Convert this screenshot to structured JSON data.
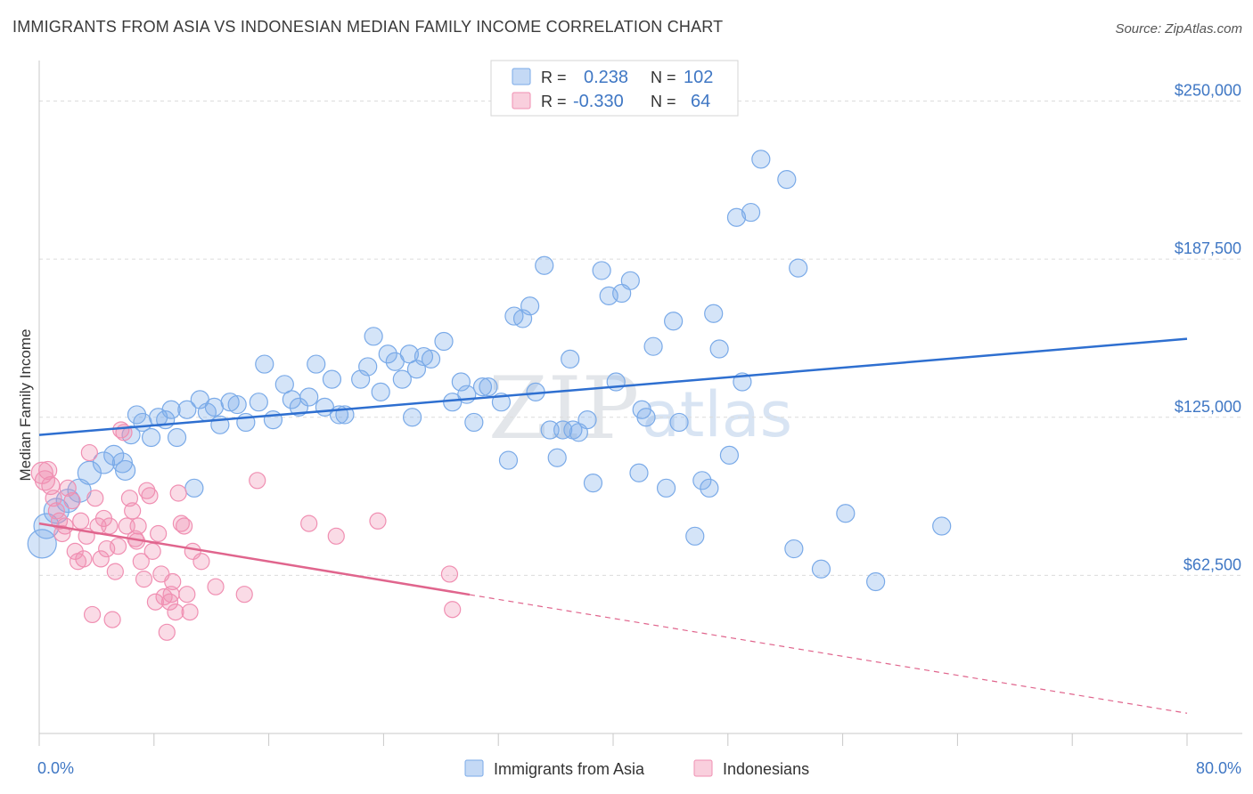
{
  "header": {
    "title": "IMMIGRANTS FROM ASIA VS INDONESIAN MEDIAN FAMILY INCOME CORRELATION CHART",
    "source": "Source: ZipAtlas.com"
  },
  "watermark": {
    "zip": "ZIP",
    "atlas": "atlas"
  },
  "chart_data": {
    "type": "scatter",
    "ylabel": "Median Family Income",
    "xlim": [
      0,
      80
    ],
    "ylim": [
      0,
      262500
    ],
    "x_tick_labels": [
      "0.0%",
      "80.0%"
    ],
    "y_ticks": [
      62500,
      125000,
      187500,
      250000
    ],
    "y_tick_labels": [
      "$62,500",
      "$125,000",
      "$187,500",
      "$250,000"
    ],
    "grid": true,
    "legend_placement": "top-center",
    "legend": {
      "rows": [
        {
          "r_label": "R =",
          "r_value": "0.238",
          "n_label": "N =",
          "n_value": "102"
        },
        {
          "r_label": "R =",
          "r_value": "-0.330",
          "n_label": "N =",
          "n_value": "64"
        }
      ]
    },
    "series": [
      {
        "name": "Immigrants from Asia",
        "color": "#7aaae8",
        "line_color": "#2e6fd0",
        "trend": {
          "x0": 0,
          "y0": 118000,
          "x1": 80,
          "y1": 156000,
          "dash_from": null
        },
        "points": [
          [
            0.2,
            75000,
            16
          ],
          [
            0.5,
            82000,
            14
          ],
          [
            1.2,
            88000,
            14
          ],
          [
            2.0,
            92000,
            13
          ],
          [
            2.8,
            96000,
            13
          ],
          [
            3.5,
            103000,
            13
          ],
          [
            4.5,
            107000,
            12
          ],
          [
            5.2,
            110000,
            11
          ],
          [
            5.8,
            107000,
            11
          ],
          [
            6.0,
            104000,
            11
          ],
          [
            6.4,
            118000,
            10
          ],
          [
            6.8,
            126000,
            10
          ],
          [
            7.2,
            123000,
            10
          ],
          [
            7.8,
            117000,
            10
          ],
          [
            8.3,
            125000,
            10
          ],
          [
            8.8,
            124000,
            10
          ],
          [
            9.2,
            128000,
            10
          ],
          [
            9.6,
            117000,
            10
          ],
          [
            10.3,
            128000,
            10
          ],
          [
            10.8,
            97000,
            10
          ],
          [
            11.2,
            132000,
            10
          ],
          [
            11.7,
            127000,
            10
          ],
          [
            12.2,
            129000,
            10
          ],
          [
            12.6,
            122000,
            10
          ],
          [
            13.3,
            131000,
            10
          ],
          [
            13.8,
            130000,
            10
          ],
          [
            14.4,
            123000,
            10
          ],
          [
            15.3,
            131000,
            10
          ],
          [
            15.7,
            146000,
            10
          ],
          [
            16.3,
            124000,
            10
          ],
          [
            17.1,
            138000,
            10
          ],
          [
            17.6,
            132000,
            10
          ],
          [
            18.1,
            129000,
            10
          ],
          [
            18.8,
            133000,
            10
          ],
          [
            19.3,
            146000,
            10
          ],
          [
            19.9,
            129000,
            10
          ],
          [
            20.4,
            140000,
            10
          ],
          [
            20.9,
            126000,
            10
          ],
          [
            21.3,
            126000,
            10
          ],
          [
            22.4,
            140000,
            10
          ],
          [
            22.9,
            145000,
            10
          ],
          [
            23.3,
            157000,
            10
          ],
          [
            23.8,
            135000,
            10
          ],
          [
            24.3,
            150000,
            10
          ],
          [
            24.8,
            147000,
            10
          ],
          [
            25.3,
            140000,
            10
          ],
          [
            25.8,
            150000,
            10
          ],
          [
            26.3,
            144000,
            10
          ],
          [
            26.8,
            149000,
            10
          ],
          [
            27.3,
            148000,
            10
          ],
          [
            28.2,
            155000,
            10
          ],
          [
            28.8,
            131000,
            10
          ],
          [
            29.4,
            139000,
            10
          ],
          [
            29.8,
            134000,
            10
          ],
          [
            30.3,
            123000,
            10
          ],
          [
            30.9,
            137000,
            10
          ],
          [
            31.3,
            137000,
            10
          ],
          [
            32.2,
            131000,
            10
          ],
          [
            32.7,
            108000,
            10
          ],
          [
            33.1,
            165000,
            10
          ],
          [
            33.7,
            164000,
            10
          ],
          [
            34.2,
            169000,
            10
          ],
          [
            34.6,
            135000,
            10
          ],
          [
            35.2,
            185000,
            10
          ],
          [
            35.6,
            120000,
            10
          ],
          [
            36.1,
            109000,
            10
          ],
          [
            36.5,
            120000,
            10
          ],
          [
            37.0,
            148000,
            10
          ],
          [
            37.6,
            119000,
            10
          ],
          [
            38.2,
            124000,
            10
          ],
          [
            38.6,
            99000,
            10
          ],
          [
            39.2,
            183000,
            10
          ],
          [
            39.7,
            173000,
            10
          ],
          [
            40.2,
            139000,
            10
          ],
          [
            40.6,
            174000,
            10
          ],
          [
            41.2,
            179000,
            10
          ],
          [
            41.8,
            103000,
            10
          ],
          [
            42.3,
            125000,
            10
          ],
          [
            42.8,
            153000,
            10
          ],
          [
            43.7,
            97000,
            10
          ],
          [
            44.2,
            163000,
            10
          ],
          [
            44.6,
            123000,
            10
          ],
          [
            45.7,
            78000,
            10
          ],
          [
            46.2,
            100000,
            10
          ],
          [
            46.7,
            97000,
            10
          ],
          [
            47.0,
            166000,
            10
          ],
          [
            47.4,
            152000,
            10
          ],
          [
            48.1,
            110000,
            10
          ],
          [
            48.6,
            204000,
            10
          ],
          [
            49.0,
            139000,
            10
          ],
          [
            49.6,
            206000,
            10
          ],
          [
            50.3,
            227000,
            10
          ],
          [
            52.1,
            219000,
            10
          ],
          [
            52.6,
            73000,
            10
          ],
          [
            52.9,
            184000,
            10
          ],
          [
            54.5,
            65000,
            10
          ],
          [
            56.2,
            87000,
            10
          ],
          [
            58.3,
            60000,
            10
          ],
          [
            62.9,
            82000,
            10
          ],
          [
            42.0,
            128000,
            10
          ],
          [
            26.0,
            125000,
            10
          ],
          [
            37.2,
            120000,
            10
          ]
        ]
      },
      {
        "name": "Indonesians",
        "color": "#f08fb2",
        "line_color": "#e0658d",
        "trend": {
          "x0": 0,
          "y0": 83000,
          "x1": 80,
          "y1": 8000,
          "dash_from": 30
        },
        "points": [
          [
            0.2,
            103000,
            12
          ],
          [
            0.4,
            100000,
            11
          ],
          [
            0.6,
            104000,
            10
          ],
          [
            0.8,
            98000,
            10
          ],
          [
            1.0,
            93000,
            9
          ],
          [
            1.2,
            88000,
            9
          ],
          [
            1.4,
            84000,
            9
          ],
          [
            1.6,
            79000,
            9
          ],
          [
            1.8,
            82000,
            9
          ],
          [
            2.0,
            97000,
            9
          ],
          [
            2.3,
            92000,
            9
          ],
          [
            2.5,
            72000,
            9
          ],
          [
            2.7,
            68000,
            9
          ],
          [
            2.9,
            84000,
            9
          ],
          [
            3.1,
            69000,
            9
          ],
          [
            3.3,
            78000,
            9
          ],
          [
            3.5,
            111000,
            9
          ],
          [
            3.7,
            47000,
            9
          ],
          [
            3.9,
            93000,
            9
          ],
          [
            4.1,
            82000,
            9
          ],
          [
            4.3,
            69000,
            9
          ],
          [
            4.5,
            85000,
            9
          ],
          [
            4.7,
            73000,
            9
          ],
          [
            4.9,
            82000,
            9
          ],
          [
            5.1,
            45000,
            9
          ],
          [
            5.3,
            64000,
            9
          ],
          [
            5.5,
            74000,
            9
          ],
          [
            5.7,
            120000,
            9
          ],
          [
            5.9,
            119000,
            9
          ],
          [
            6.1,
            82000,
            9
          ],
          [
            6.3,
            93000,
            9
          ],
          [
            6.5,
            88000,
            9
          ],
          [
            6.7,
            77000,
            9
          ],
          [
            6.9,
            82000,
            9
          ],
          [
            7.1,
            68000,
            9
          ],
          [
            7.3,
            61000,
            9
          ],
          [
            7.5,
            96000,
            9
          ],
          [
            7.7,
            94000,
            9
          ],
          [
            7.9,
            72000,
            9
          ],
          [
            8.1,
            52000,
            9
          ],
          [
            8.3,
            79000,
            9
          ],
          [
            8.5,
            63000,
            9
          ],
          [
            8.7,
            54000,
            9
          ],
          [
            8.9,
            40000,
            9
          ],
          [
            9.1,
            52000,
            9
          ],
          [
            9.3,
            60000,
            9
          ],
          [
            9.5,
            48000,
            9
          ],
          [
            9.7,
            95000,
            9
          ],
          [
            9.9,
            83000,
            9
          ],
          [
            10.1,
            82000,
            9
          ],
          [
            10.3,
            55000,
            9
          ],
          [
            10.5,
            48000,
            9
          ],
          [
            10.7,
            72000,
            9
          ],
          [
            11.3,
            68000,
            9
          ],
          [
            12.3,
            58000,
            9
          ],
          [
            14.3,
            55000,
            9
          ],
          [
            15.2,
            100000,
            9
          ],
          [
            18.8,
            83000,
            9
          ],
          [
            20.7,
            78000,
            9
          ],
          [
            23.6,
            84000,
            9
          ],
          [
            28.6,
            63000,
            9
          ],
          [
            28.8,
            49000,
            9
          ],
          [
            9.2,
            55000,
            9
          ],
          [
            6.8,
            76000,
            9
          ]
        ]
      }
    ]
  }
}
